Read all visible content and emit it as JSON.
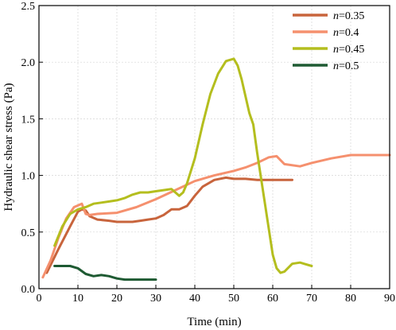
{
  "chart_data": {
    "type": "line",
    "xlabel": "Time (min)",
    "ylabel": "Hydraulic shear stress (Pa)",
    "xlim": [
      0,
      90
    ],
    "ylim": [
      0,
      2.5
    ],
    "xticks": [
      "0",
      "10",
      "20",
      "30",
      "40",
      "50",
      "60",
      "70",
      "80",
      "90"
    ],
    "yticks": [
      "0.0",
      "0.5",
      "1.0",
      "1.5",
      "2.0",
      "2.5"
    ],
    "grid": true,
    "legend_position": "top-right",
    "series": [
      {
        "name": "n=0.35",
        "legend_var": "n",
        "legend_val": "=0.35",
        "color": "#c8643c",
        "x": [
          2,
          5,
          8,
          10,
          11,
          12,
          13,
          15,
          18,
          20,
          22,
          24,
          26,
          28,
          30,
          32,
          34,
          36,
          38,
          40,
          42,
          45,
          48,
          50,
          53,
          56,
          60,
          63,
          65
        ],
        "y": [
          0.14,
          0.35,
          0.55,
          0.68,
          0.7,
          0.69,
          0.64,
          0.61,
          0.6,
          0.59,
          0.59,
          0.59,
          0.6,
          0.61,
          0.62,
          0.65,
          0.7,
          0.7,
          0.73,
          0.82,
          0.9,
          0.96,
          0.98,
          0.97,
          0.97,
          0.96,
          0.96,
          0.96,
          0.96
        ]
      },
      {
        "name": "n=0.4",
        "legend_var": "n",
        "legend_val": "=0.4",
        "color": "#f5906e",
        "x": [
          1,
          3,
          5,
          7,
          9,
          11,
          12,
          13,
          15,
          20,
          25,
          30,
          35,
          40,
          45,
          50,
          53,
          56,
          59,
          61,
          63,
          67,
          70,
          75,
          80,
          85,
          90
        ],
        "y": [
          0.1,
          0.25,
          0.45,
          0.62,
          0.72,
          0.75,
          0.66,
          0.65,
          0.66,
          0.67,
          0.72,
          0.79,
          0.87,
          0.95,
          1.0,
          1.04,
          1.07,
          1.11,
          1.16,
          1.17,
          1.1,
          1.08,
          1.11,
          1.15,
          1.18,
          1.18,
          1.18
        ]
      },
      {
        "name": "n=0.45",
        "legend_var": "n",
        "legend_val": "=0.45",
        "color": "#b4be1e",
        "x": [
          4,
          6,
          8,
          10,
          12,
          14,
          16,
          18,
          20,
          22,
          24,
          26,
          28,
          30,
          32,
          34,
          35,
          36,
          37,
          38,
          40,
          42,
          44,
          46,
          48,
          50,
          51,
          52,
          54,
          55,
          56,
          58,
          60,
          61,
          62,
          63,
          65,
          67,
          70
        ],
        "y": [
          0.38,
          0.55,
          0.66,
          0.7,
          0.72,
          0.75,
          0.76,
          0.77,
          0.78,
          0.8,
          0.83,
          0.85,
          0.85,
          0.86,
          0.87,
          0.88,
          0.85,
          0.82,
          0.85,
          0.93,
          1.15,
          1.45,
          1.72,
          1.9,
          2.01,
          2.03,
          1.97,
          1.85,
          1.55,
          1.45,
          1.2,
          0.75,
          0.3,
          0.18,
          0.14,
          0.15,
          0.22,
          0.23,
          0.2
        ]
      },
      {
        "name": "n=0.5",
        "legend_var": "n",
        "legend_val": "=0.5",
        "color": "#1e5a32",
        "x": [
          4,
          6,
          8,
          10,
          12,
          14,
          16,
          18,
          20,
          22,
          24,
          26,
          28,
          30
        ],
        "y": [
          0.2,
          0.2,
          0.2,
          0.18,
          0.13,
          0.11,
          0.12,
          0.11,
          0.09,
          0.08,
          0.08,
          0.08,
          0.08,
          0.08
        ]
      }
    ]
  }
}
